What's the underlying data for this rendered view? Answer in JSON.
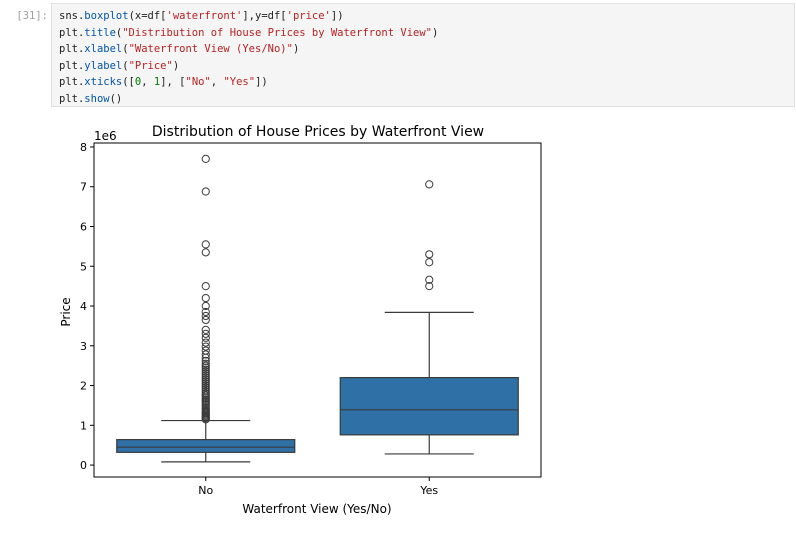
{
  "cell": {
    "prompt": "[31]:",
    "code_lines": [
      [
        {
          "t": "sns.",
          "c": "p"
        },
        {
          "t": "boxplot",
          "c": "f"
        },
        {
          "t": "(x=df[",
          "c": "p"
        },
        {
          "t": "'waterfront'",
          "c": "s"
        },
        {
          "t": "],y=df[",
          "c": "p"
        },
        {
          "t": "'price'",
          "c": "s"
        },
        {
          "t": "])",
          "c": "p"
        }
      ],
      [
        {
          "t": "plt.",
          "c": "p"
        },
        {
          "t": "title",
          "c": "f"
        },
        {
          "t": "(",
          "c": "p"
        },
        {
          "t": "\"Distribution of House Prices by Waterfront View\"",
          "c": "s"
        },
        {
          "t": ")",
          "c": "p"
        }
      ],
      [
        {
          "t": "plt.",
          "c": "p"
        },
        {
          "t": "xlabel",
          "c": "f"
        },
        {
          "t": "(",
          "c": "p"
        },
        {
          "t": "\"Waterfront View (Yes/No)\"",
          "c": "s"
        },
        {
          "t": ")",
          "c": "p"
        }
      ],
      [
        {
          "t": "plt.",
          "c": "p"
        },
        {
          "t": "ylabel",
          "c": "f"
        },
        {
          "t": "(",
          "c": "p"
        },
        {
          "t": "\"Price\"",
          "c": "s"
        },
        {
          "t": ")",
          "c": "p"
        }
      ],
      [
        {
          "t": "plt.",
          "c": "p"
        },
        {
          "t": "xticks",
          "c": "f"
        },
        {
          "t": "([",
          "c": "p"
        },
        {
          "t": "0",
          "c": "n"
        },
        {
          "t": ", ",
          "c": "p"
        },
        {
          "t": "1",
          "c": "n"
        },
        {
          "t": "], [",
          "c": "p"
        },
        {
          "t": "\"No\"",
          "c": "s"
        },
        {
          "t": ", ",
          "c": "p"
        },
        {
          "t": "\"Yes\"",
          "c": "s"
        },
        {
          "t": "])",
          "c": "p"
        }
      ],
      [
        {
          "t": "plt.",
          "c": "p"
        },
        {
          "t": "show",
          "c": "f"
        },
        {
          "t": "()",
          "c": "p"
        }
      ]
    ]
  },
  "colors": {
    "box_fill": "#2f71a6",
    "box_edge": "#3a3a3a",
    "axis": "#000000"
  },
  "chart_data": {
    "type": "box",
    "title": "Distribution of House Prices by Waterfront View",
    "xlabel": "Waterfront View (Yes/No)",
    "ylabel": "Price",
    "offset_label": "1e6",
    "ylim": [
      -0.3,
      8.1
    ],
    "yticks": [
      0,
      1,
      2,
      3,
      4,
      5,
      6,
      7,
      8
    ],
    "ytick_labels": [
      "0",
      "1",
      "2",
      "3",
      "4",
      "5",
      "6",
      "7",
      "8"
    ],
    "categories": [
      "No",
      "Yes"
    ],
    "boxes": [
      {
        "category": "No",
        "whisker_low": 0.08,
        "q1": 0.32,
        "median": 0.45,
        "q3": 0.64,
        "whisker_high": 1.12,
        "outliers": [
          1.15,
          1.18,
          1.21,
          1.24,
          1.27,
          1.3,
          1.33,
          1.36,
          1.4,
          1.44,
          1.48,
          1.52,
          1.56,
          1.6,
          1.64,
          1.68,
          1.72,
          1.76,
          1.8,
          1.85,
          1.9,
          1.95,
          2.0,
          2.05,
          2.1,
          2.15,
          2.2,
          2.25,
          2.3,
          2.35,
          2.4,
          2.45,
          2.5,
          2.55,
          2.62,
          2.7,
          2.78,
          2.88,
          2.98,
          3.08,
          3.2,
          3.3,
          3.4,
          3.65,
          3.75,
          3.85,
          4.0,
          4.2,
          4.5,
          5.35,
          5.55,
          6.88,
          7.7
        ]
      },
      {
        "category": "Yes",
        "whisker_low": 0.28,
        "q1": 0.76,
        "median": 1.39,
        "q3": 2.2,
        "whisker_high": 3.84,
        "outliers": [
          4.5,
          4.66,
          5.1,
          5.3,
          7.06
        ]
      }
    ]
  }
}
